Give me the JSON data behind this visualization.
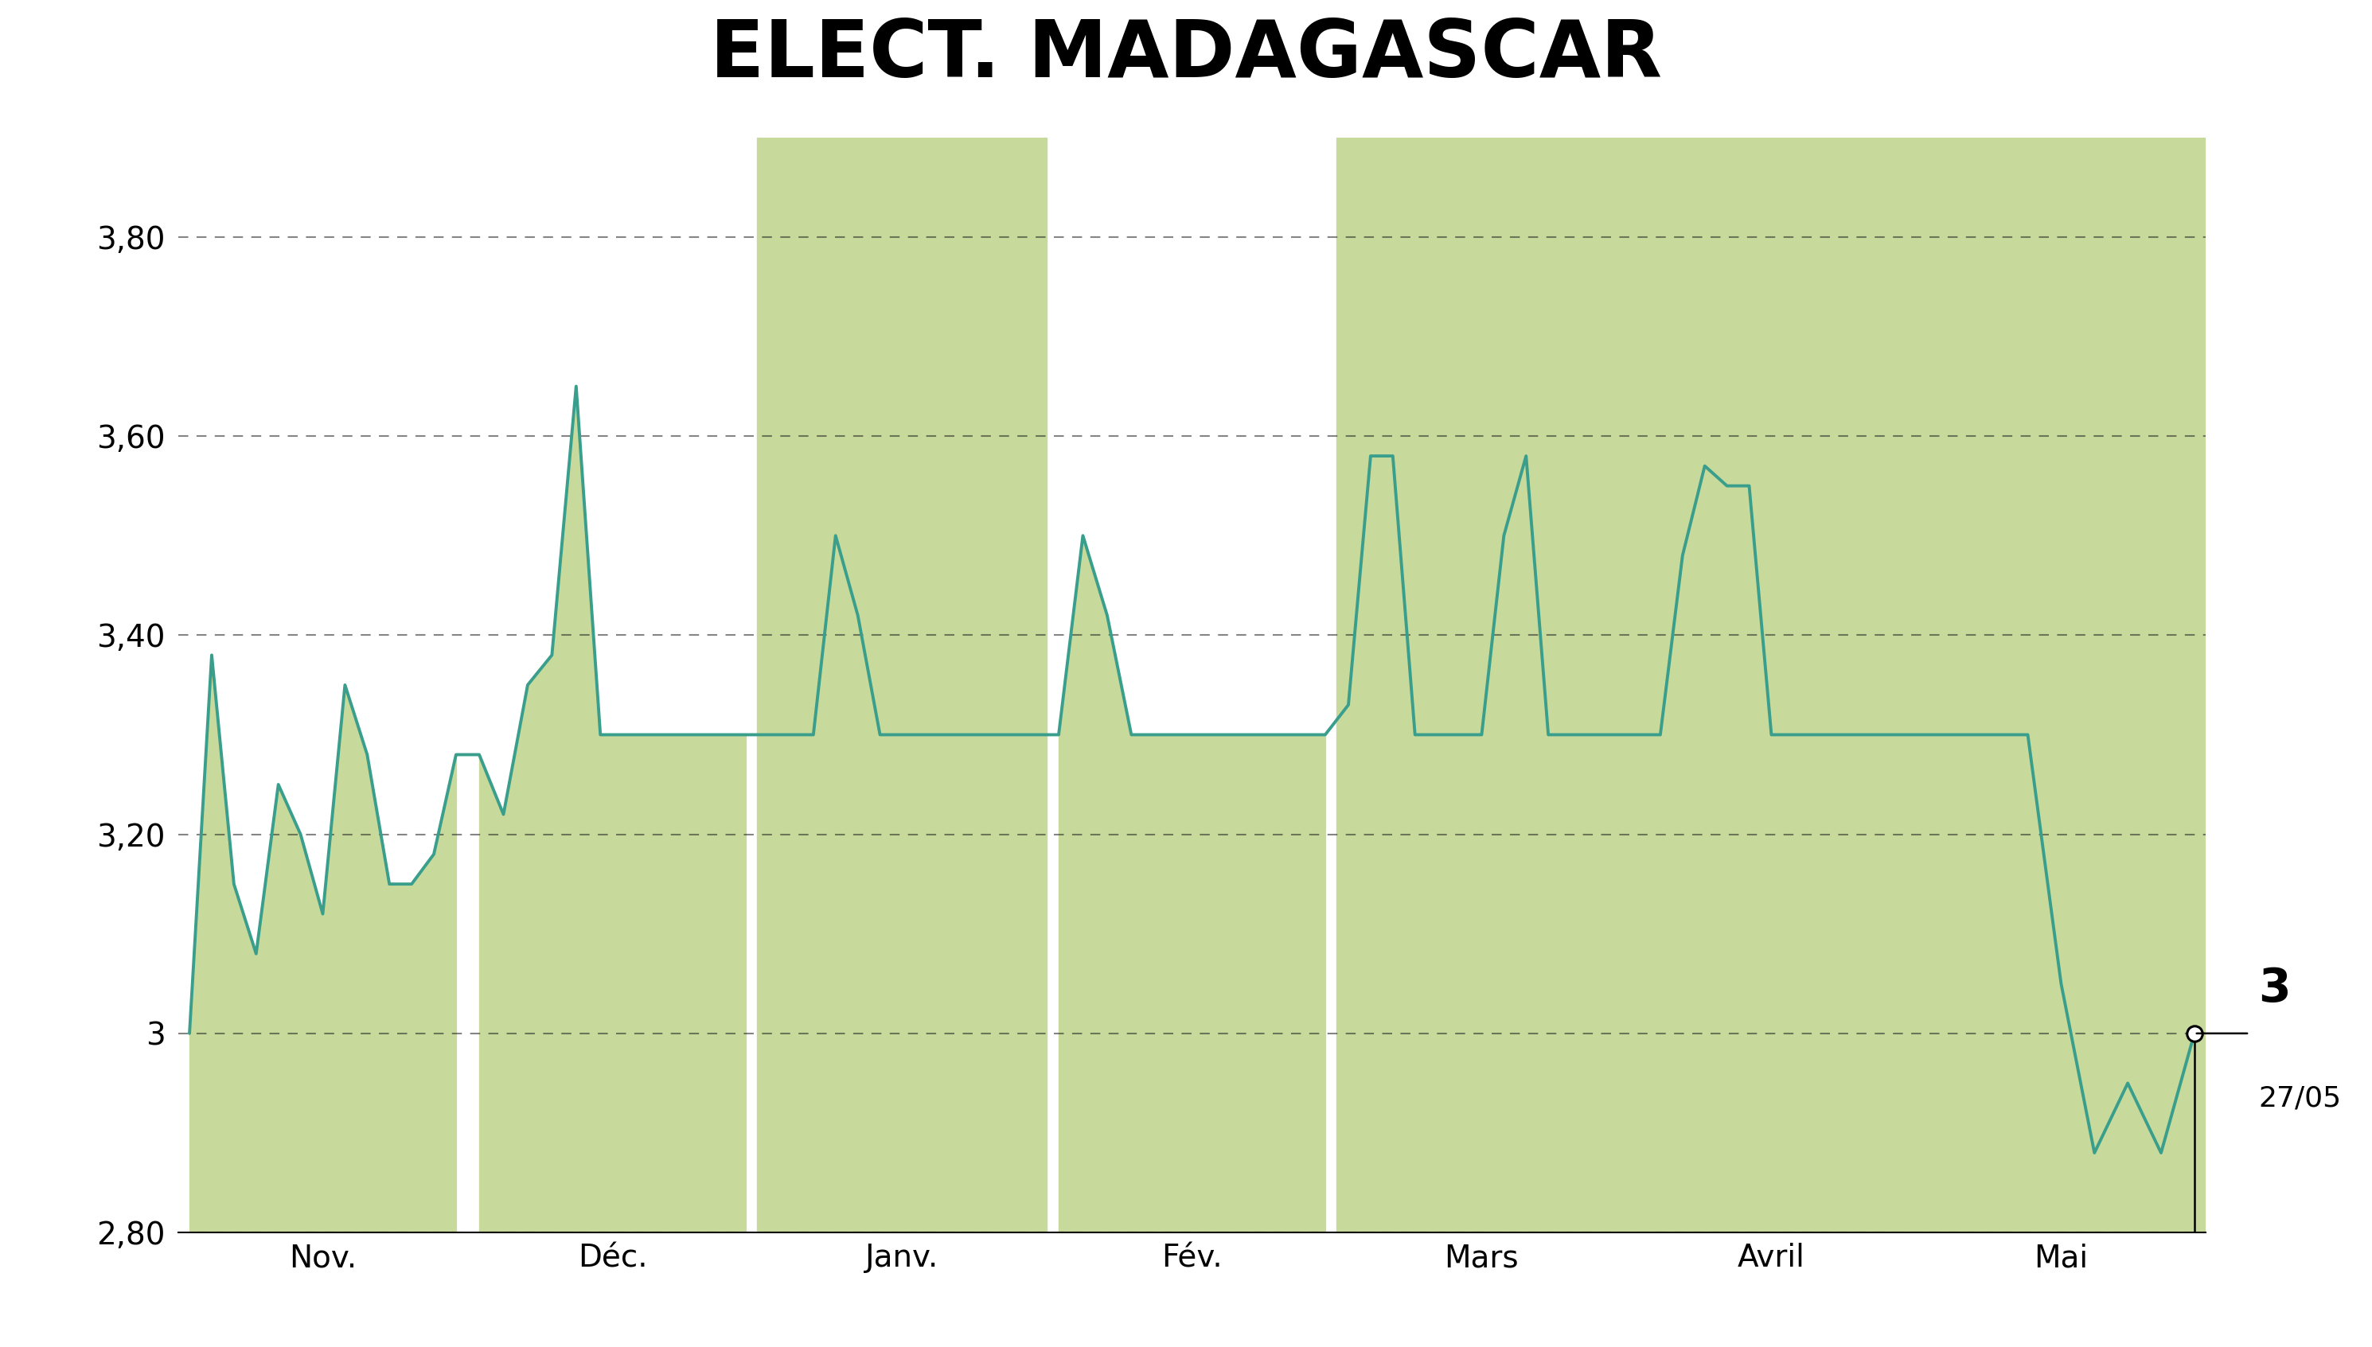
{
  "title": "ELECT. MADAGASCAR",
  "title_bg_color": "#c8da9b",
  "bg_color": "#ffffff",
  "line_color": "#3a9e8c",
  "fill_color": "#c8da9b",
  "grid_color": "#222222",
  "ylim": [
    2.8,
    3.9
  ],
  "yticks": [
    2.8,
    3.0,
    3.2,
    3.4,
    3.6,
    3.8
  ],
  "ytick_labels": [
    "2,80",
    "3",
    "3,20",
    "3,40",
    "3,60",
    "3,80"
  ],
  "xtick_labels": [
    "Nov.",
    "Déc.",
    "Janv.",
    "Fév.",
    "Mars",
    "Avril",
    "Mai"
  ],
  "annotation_value": "3",
  "annotation_date": "27/05",
  "last_price": 3.0,
  "line_width": 2.8,
  "nov_y": [
    3.0,
    3.38,
    3.15,
    3.08,
    3.25,
    3.2,
    3.12,
    3.35,
    3.28,
    3.15,
    3.15,
    3.18,
    3.28
  ],
  "dec_y": [
    3.28,
    3.22,
    3.35,
    3.38,
    3.65,
    3.3,
    3.3,
    3.3,
    3.3,
    3.3,
    3.3,
    3.3
  ],
  "jan_y": [
    3.3,
    3.3,
    3.3,
    3.5,
    3.42,
    3.3,
    3.3,
    3.3,
    3.3,
    3.3,
    3.3,
    3.3,
    3.3
  ],
  "feb_y": [
    3.3,
    3.5,
    3.42,
    3.3,
    3.3,
    3.3,
    3.3,
    3.3,
    3.3,
    3.3,
    3.3,
    3.3
  ],
  "mar_y": [
    3.33,
    3.58,
    3.58,
    3.3,
    3.3,
    3.3,
    3.3,
    3.5,
    3.58,
    3.3,
    3.3,
    3.3,
    3.3
  ],
  "apr_y": [
    3.3,
    3.3,
    3.48,
    3.57,
    3.55,
    3.55,
    3.3,
    3.3,
    3.3,
    3.3,
    3.3,
    3.3,
    3.3
  ],
  "may_y": [
    3.3,
    3.3,
    3.3,
    3.3,
    3.05,
    2.88,
    2.95,
    2.88,
    3.0
  ],
  "month_green": [
    false,
    false,
    true,
    false,
    true,
    true,
    true
  ]
}
